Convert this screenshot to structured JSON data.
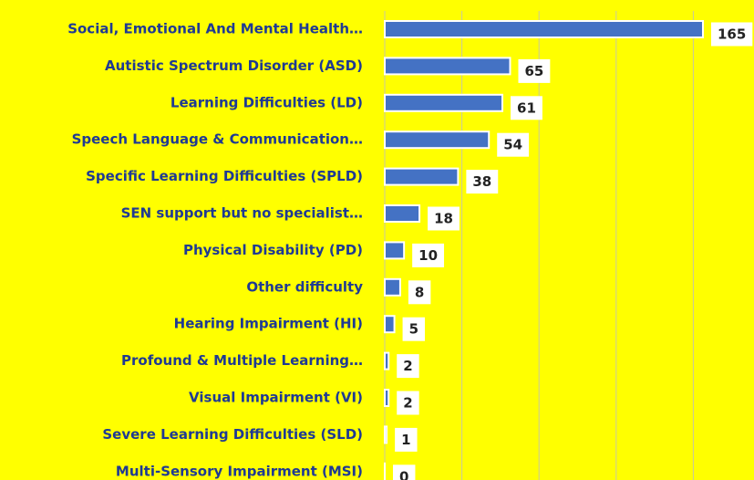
{
  "chart_data": {
    "type": "hbar",
    "categories": [
      "Social, Emotional And Mental Health…",
      "Autistic Spectrum Disorder (ASD)",
      "Learning Difficulties (LD)",
      "Speech Language & Communication…",
      "Specific Learning Difficulties (SPLD)",
      "SEN support but no specialist…",
      "Physical Disability (PD)",
      "Other difficulty",
      "Hearing Impairment (HI)",
      "Profound & Multiple Learning…",
      "Visual Impairment (VI)",
      "Severe Learning Difficulties (SLD)",
      "Multi-Sensory Impairment (MSI)"
    ],
    "values": [
      165,
      65,
      61,
      54,
      38,
      18,
      10,
      8,
      5,
      2,
      2,
      1,
      0
    ],
    "color": "#4472c4",
    "background": "#ffff00",
    "xlim": [
      0,
      190
    ],
    "xticks": [
      0,
      40,
      80,
      120,
      160
    ],
    "grid": true
  }
}
